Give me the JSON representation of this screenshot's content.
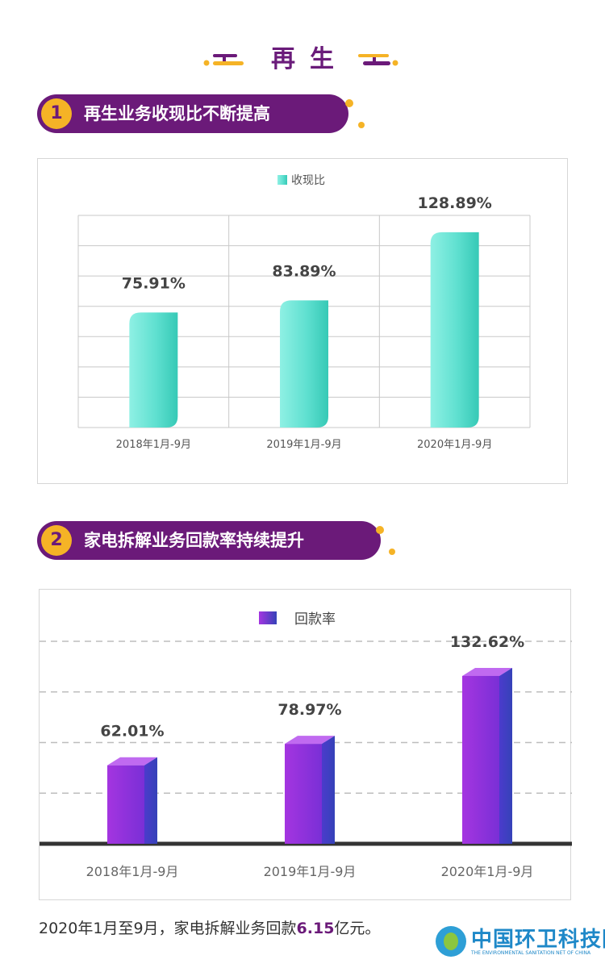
{
  "header": {
    "title": "再生"
  },
  "section1": {
    "number": "1",
    "title": "再生业务收现比不断提高"
  },
  "section2": {
    "number": "2",
    "title": "家电拆解业务回款率持续提升"
  },
  "note": {
    "prefix": "2020年1月至9月，家电拆解业务回款",
    "highlight": "6.15",
    "suffix": "亿元。"
  },
  "watermark": {
    "name": "中国环卫科技网",
    "subtitle": "THE ENVIRONMENTAL SANITATION NET OF CHINA"
  },
  "colors": {
    "accent": "#6b1a79",
    "gold": "#f5b326",
    "teal": "#5fe0d0",
    "purple": "#8e2fd8",
    "blue": "#3b4fc8"
  },
  "chart_data": [
    {
      "type": "bar",
      "legend": "收现比",
      "categories": [
        "2018年1月-9月",
        "2019年1月-9月",
        "2020年1月-9月"
      ],
      "values": [
        75.91,
        83.89,
        128.89
      ],
      "labels": [
        "75.91%",
        "83.89%",
        "128.89%"
      ],
      "ylim": [
        0,
        140
      ],
      "grid": true,
      "legend_position": "top-center"
    },
    {
      "type": "bar",
      "legend": "回款率",
      "categories": [
        "2018年1月-9月",
        "2019年1月-9月",
        "2020年1月-9月"
      ],
      "values": [
        62.01,
        78.97,
        132.62
      ],
      "labels": [
        "62.01%",
        "78.97%",
        "132.62%"
      ],
      "ylim": [
        0,
        160
      ],
      "grid": true,
      "legend_position": "top-center"
    }
  ]
}
